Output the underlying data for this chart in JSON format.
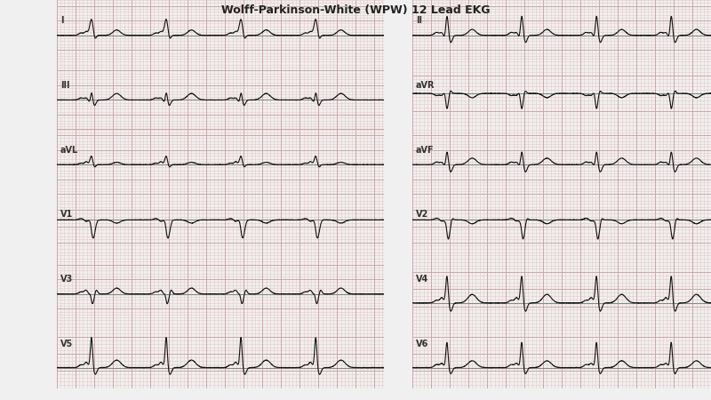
{
  "bg_color": "#f0f0f0",
  "grid_major_color": "#c8a0a0",
  "grid_minor_color": "#e8c8c8",
  "line_color": "#111111",
  "label_color": "#333333",
  "fig_width": 8.0,
  "fig_height": 4.5,
  "leads_left": [
    "I",
    "II",
    "III",
    "aVR",
    "aVL",
    "aVF"
  ],
  "leads_right": [
    "V1",
    "V2",
    "V3",
    "V4",
    "V5",
    "V6"
  ],
  "n_leads": 6,
  "sample_rate": 500,
  "duration": 4.0,
  "title": "Wolff-Parkinson-White (WPW) 12 Lead EKG"
}
